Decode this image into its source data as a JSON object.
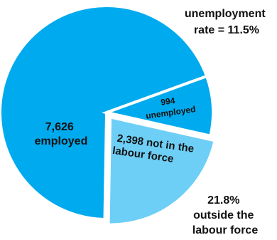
{
  "colors": {
    "employed": "#00aaee",
    "unemployed": "#00aaee",
    "outside": "#6ecff6",
    "separator": "#ffffff"
  },
  "chart_data": {
    "type": "pie",
    "unit": "thousands",
    "slices": [
      {
        "value": 7626,
        "label_lines": [
          "7,626",
          "employed"
        ],
        "exploded": false
      },
      {
        "value": 994,
        "label_lines": [
          "994",
          "unemployed"
        ],
        "exploded": false
      },
      {
        "value": 2398,
        "label_lines": [
          "2,398 not in the",
          "labour force"
        ],
        "exploded": true
      }
    ],
    "annotations": [
      {
        "lines": [
          "unemployment",
          "rate = 11.5%"
        ]
      },
      {
        "lines": [
          "21.8%",
          "outside the",
          "labour force"
        ]
      }
    ]
  }
}
